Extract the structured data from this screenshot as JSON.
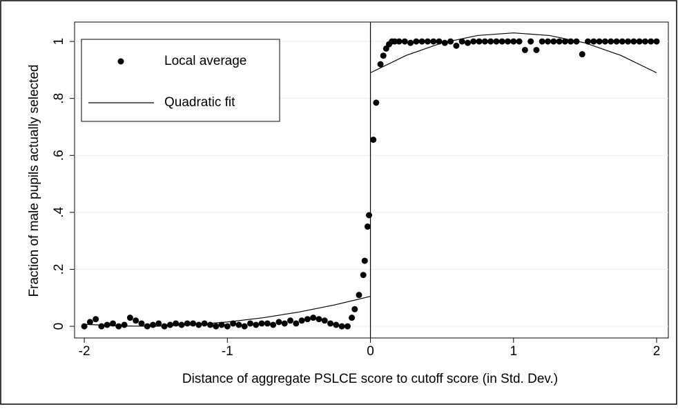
{
  "chart_data": {
    "type": "scatter",
    "x_label": "Distance of aggregate PSLCE score to cutoff score (in Std. Dev.)",
    "y_label": "Fraction of male pupils actually selected",
    "xlim": [
      -2.068,
      2.082
    ],
    "ylim": [
      -0.041,
      1.068
    ],
    "xticks": [
      -2,
      -1,
      0,
      1,
      2
    ],
    "yticks": [
      0,
      {
        "value": 0.2,
        "label": ".2"
      },
      {
        "value": 0.4,
        "label": ".4"
      },
      {
        "value": 0.6,
        "label": ".6"
      },
      {
        "value": 0.8,
        "label": ".8"
      },
      1
    ],
    "grid": true,
    "vline": 0,
    "legend": "top-left",
    "series": [
      {
        "name": "Local average",
        "type": "scatter",
        "color": "#000000",
        "x": [
          -2,
          -1.96,
          -1.92,
          -1.88,
          -1.84,
          -1.8,
          -1.76,
          -1.72,
          -1.68,
          -1.64,
          -1.6,
          -1.56,
          -1.52,
          -1.48,
          -1.44,
          -1.4,
          -1.36,
          -1.32,
          -1.28,
          -1.24,
          -1.2,
          -1.16,
          -1.12,
          -1.08,
          -1.04,
          -1,
          -0.96,
          -0.92,
          -0.88,
          -0.84,
          -0.8,
          -0.76,
          -0.72,
          -0.68,
          -0.64,
          -0.6,
          -0.56,
          -0.52,
          -0.48,
          -0.44,
          -0.4,
          -0.36,
          -0.32,
          -0.28,
          -0.24,
          -0.2,
          -0.16,
          -0.13,
          -0.11,
          -0.08,
          -0.05,
          -0.04,
          -0.02,
          -0.01,
          0.02,
          0.04,
          0.07,
          0.09,
          0.11,
          0.13,
          0.15,
          0.17,
          0.2,
          0.24,
          0.28,
          0.32,
          0.36,
          0.4,
          0.44,
          0.48,
          0.52,
          0.56,
          0.6,
          0.64,
          0.68,
          0.72,
          0.76,
          0.8,
          0.84,
          0.88,
          0.92,
          0.96,
          1,
          1.04,
          1.08,
          1.12,
          1.16,
          1.2,
          1.24,
          1.28,
          1.32,
          1.36,
          1.4,
          1.44,
          1.48,
          1.52,
          1.56,
          1.6,
          1.64,
          1.68,
          1.72,
          1.76,
          1.8,
          1.84,
          1.88,
          1.92,
          1.96,
          2
        ],
        "values": [
          0,
          0.015,
          0.025,
          0,
          0.005,
          0.01,
          0,
          0.005,
          0.03,
          0.02,
          0.01,
          0,
          0.005,
          0.01,
          0,
          0.005,
          0.01,
          0.005,
          0.01,
          0.01,
          0.005,
          0.01,
          0.005,
          0,
          0.005,
          0,
          0.01,
          0.005,
          0,
          0.01,
          0.005,
          0.01,
          0.01,
          0.005,
          0.015,
          0.01,
          0.02,
          0.01,
          0.02,
          0.025,
          0.03,
          0.025,
          0.02,
          0.01,
          0.005,
          0,
          0,
          0.03,
          0.06,
          0.11,
          0.18,
          0.23,
          0.35,
          0.39,
          0.655,
          0.785,
          0.92,
          0.95,
          0.975,
          0.99,
          1,
          1,
          1,
          1,
          0.995,
          1,
          1,
          1,
          1,
          1,
          0.995,
          1,
          0.985,
          1,
          0.995,
          1,
          1,
          1,
          1,
          1,
          1,
          1,
          1,
          1,
          0.97,
          1,
          0.97,
          1,
          1,
          1,
          1,
          1,
          1,
          1,
          0.955,
          1,
          1,
          1,
          1,
          1,
          1,
          1,
          1,
          1,
          1,
          1,
          1,
          1
        ]
      },
      {
        "name": "Quadratic fit",
        "type": "line",
        "color": "#000000",
        "x": [
          -2,
          -1.75,
          -1.5,
          -1.25,
          -1,
          -0.75,
          -0.5,
          -0.25,
          0,
          0,
          0,
          0.25,
          0.5,
          0.75,
          1,
          1.25,
          1.5,
          1.75,
          2
        ],
        "values": [
          0.007,
          0.001,
          0,
          0.005,
          0.015,
          0.03,
          0.05,
          0.075,
          0.105,
          null,
          0.89,
          0.951,
          0.995,
          1.021,
          1.03,
          1.021,
          0.995,
          0.951,
          0.89
        ]
      }
    ]
  }
}
